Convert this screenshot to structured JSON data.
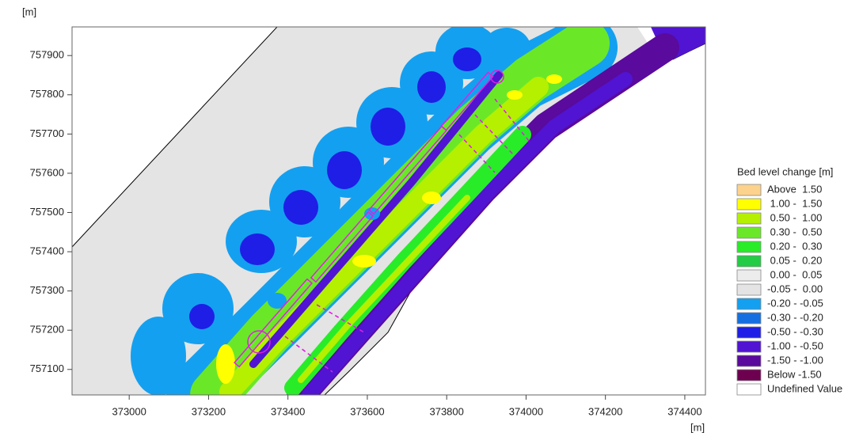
{
  "chart_data": {
    "type": "contour",
    "x_label": "[m]",
    "y_label": "[m]",
    "xlim": [
      372856,
      374452
    ],
    "ylim": [
      757035,
      757973
    ],
    "xticks": [
      373000,
      373200,
      373400,
      373600,
      373800,
      374000,
      374200,
      374400
    ],
    "yticks": [
      757100,
      757200,
      757300,
      757400,
      757500,
      757600,
      757700,
      757800,
      757900
    ],
    "legend": {
      "title": "Bed level change [m]",
      "position": "right",
      "classes": [
        {
          "label": "Above  1.50",
          "color": "#fcd28c"
        },
        {
          "label": " 1.00 -  1.50",
          "color": "#ffff00"
        },
        {
          "label": " 0.50 -  1.00",
          "color": "#b4f000"
        },
        {
          "label": " 0.30 -  0.50",
          "color": "#6ae828"
        },
        {
          "label": " 0.20 -  0.30",
          "color": "#28ec28"
        },
        {
          "label": " 0.05 -  0.20",
          "color": "#22cc44"
        },
        {
          "label": " 0.00 -  0.05",
          "color": "#ececec"
        },
        {
          "label": "-0.05 -  0.00",
          "color": "#e4e4e4"
        },
        {
          "label": "-0.20 - -0.05",
          "color": "#14a0f0"
        },
        {
          "label": "-0.30 - -0.20",
          "color": "#1470e0"
        },
        {
          "label": "-0.50 - -0.30",
          "color": "#1e1ee6"
        },
        {
          "label": "-1.00 - -0.50",
          "color": "#5014d2"
        },
        {
          "label": "-1.50 - -1.00",
          "color": "#5a0a9c"
        },
        {
          "label": "Below -1.50",
          "color": "#6e0050"
        },
        {
          "label": "Undefined Value",
          "color": "#ffffff"
        }
      ]
    }
  }
}
